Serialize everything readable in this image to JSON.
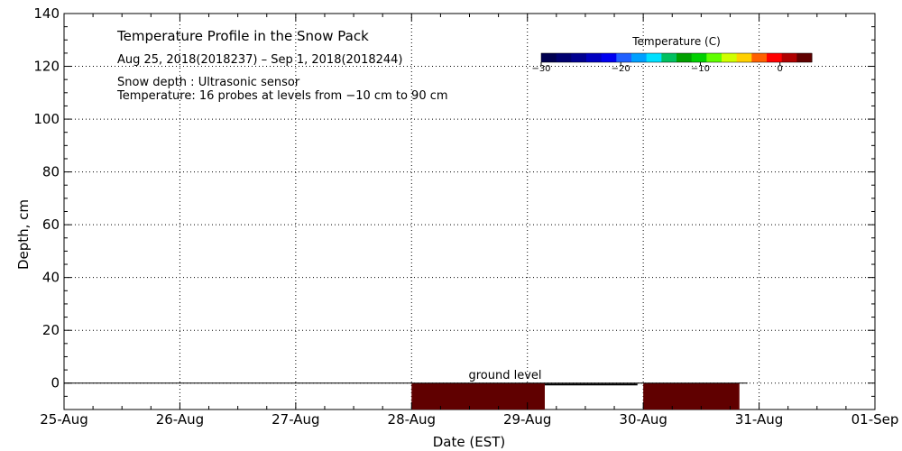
{
  "chart_data": {
    "type": "area",
    "title": "Temperature Profile in the Snow Pack",
    "subtitle": "Aug 25, 2018(2018237) – Sep  1, 2018(2018244)",
    "notes": [
      "Snow depth : Ultrasonic sensor",
      "Temperature: 16 probes at levels from −10 cm to 90 cm"
    ],
    "xlabel": "Date (EST)",
    "ylabel": "Depth, cm",
    "x_ticks": [
      "25-Aug",
      "26-Aug",
      "27-Aug",
      "28-Aug",
      "29-Aug",
      "30-Aug",
      "31-Aug",
      "01-Sep"
    ],
    "y_ticks": [
      0,
      20,
      40,
      60,
      80,
      100,
      120,
      140
    ],
    "ylim": [
      -10,
      140
    ],
    "xlim_days": [
      0,
      7
    ],
    "grid": true,
    "ground_level_label": "ground level",
    "ground_level_value": 0,
    "ground_line_end_day": 5.9,
    "snow_depth": [
      {
        "start_day": 4.15,
        "end_day": 4.95,
        "depth": -0.5
      }
    ],
    "temperature_blocks": [
      {
        "start_day": 3.0,
        "end_day": 4.15,
        "top": 0,
        "bottom": -10,
        "temperature": 4
      },
      {
        "start_day": 5.0,
        "end_day": 5.83,
        "top": 0,
        "bottom": -10,
        "temperature": 4
      }
    ],
    "colorbar": {
      "label": "Temperature (C)",
      "ticks": [
        "−30",
        "−20",
        "−10",
        "0"
      ],
      "range": [
        -30,
        4
      ],
      "colors": [
        "#000050",
        "#000070",
        "#000090",
        "#0000c0",
        "#0000f0",
        "#2060ff",
        "#00a0ff",
        "#00e0ff",
        "#00c060",
        "#00a000",
        "#00d000",
        "#60ff00",
        "#d0ff00",
        "#ffd000",
        "#ff6000",
        "#ff0000",
        "#b00000",
        "#600000"
      ]
    },
    "block_color": "#600000"
  }
}
